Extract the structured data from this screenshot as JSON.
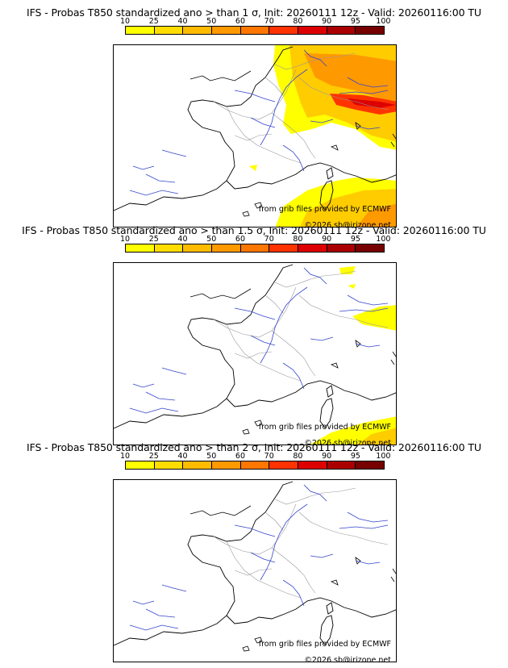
{
  "legend": {
    "ticks": [
      "10",
      "25",
      "40",
      "50",
      "60",
      "70",
      "80",
      "90",
      "95",
      "100"
    ],
    "colors": [
      "#ffff00",
      "#ffdd00",
      "#ffbb00",
      "#ff9900",
      "#ff7700",
      "#ff3300",
      "#dd0000",
      "#aa0000",
      "#770000"
    ]
  },
  "map_style": {
    "coast_color": "#000000",
    "river_color": "#3344cc",
    "border_color": "#999999"
  },
  "panels": [
    {
      "title": "IFS - Probas T850  standardized ano > than 1 σ, Init: 20260111 12z - Valid: 20260116:00 TU",
      "credit_line1": "from grib files provided by ECMWF",
      "credit_line2": "©2026 sb@irizone.net",
      "anomaly_level": "1 σ"
    },
    {
      "title": "IFS - Probas T850  standardized ano > than 1.5 σ, Init: 20260111 12z - Valid: 20260116:00 TU",
      "credit_line1": "from grib files provided by ECMWF",
      "credit_line2": "©2026 sb@irizone.net",
      "anomaly_level": "1.5 σ"
    },
    {
      "title": "IFS - Probas T850  standardized ano > than 2 σ, Init: 20260111 12z - Valid: 20260116:00 TU",
      "credit_line1": "from grib files provided by ECMWF",
      "credit_line2": "©2026 sb@irizone.net",
      "anomaly_level": "2 σ"
    }
  ]
}
